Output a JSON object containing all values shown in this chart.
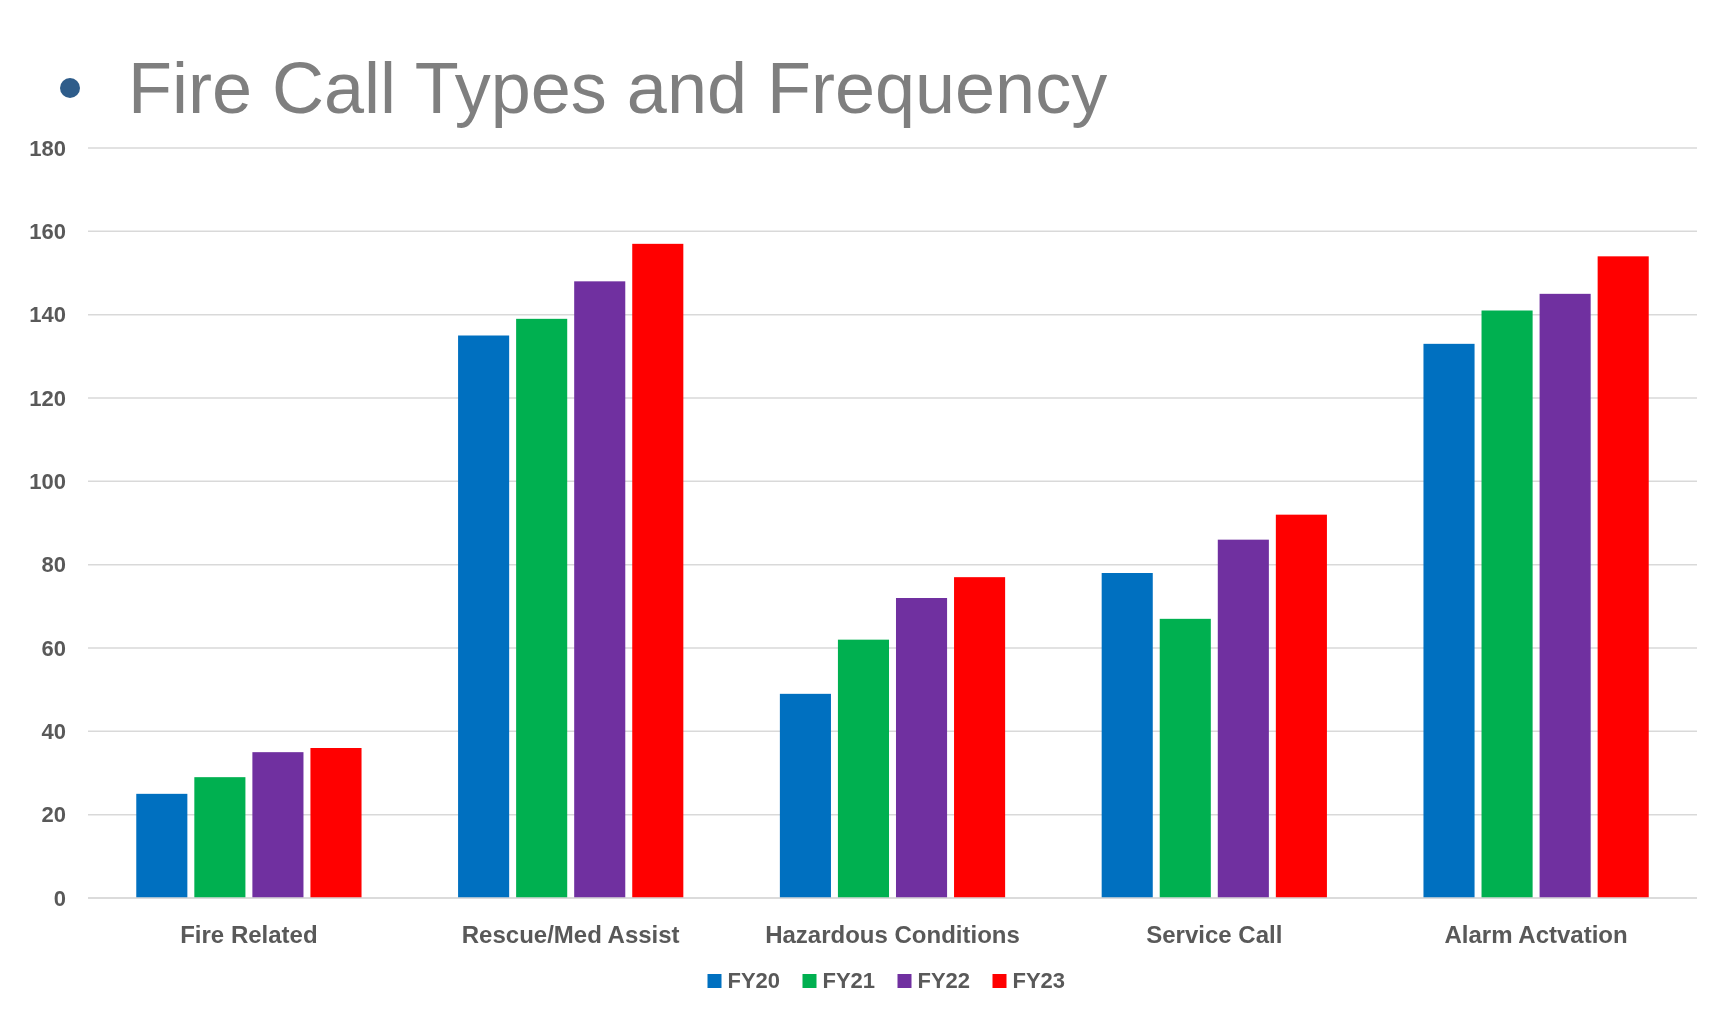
{
  "chart_data": {
    "type": "bar",
    "title": "Fire Call Types and Frequency",
    "categories": [
      "Fire Related",
      "Rescue/Med Assist",
      "Hazardous Conditions",
      "Service Call",
      "Alarm Actvation"
    ],
    "series": [
      {
        "name": "FY20",
        "color": "#0070c0",
        "values": [
          25,
          135,
          49,
          78,
          133
        ]
      },
      {
        "name": "FY21",
        "color": "#00b050",
        "values": [
          29,
          139,
          62,
          67,
          141
        ]
      },
      {
        "name": "FY22",
        "color": "#7030a0",
        "values": [
          35,
          148,
          72,
          86,
          145
        ]
      },
      {
        "name": "FY23",
        "color": "#ff0000",
        "values": [
          36,
          157,
          77,
          92,
          154
        ]
      }
    ],
    "ylim": [
      0,
      180
    ],
    "yticks": [
      0,
      20,
      40,
      60,
      80,
      100,
      120,
      140,
      160,
      180
    ],
    "grid": "y",
    "legend": "bottom"
  }
}
